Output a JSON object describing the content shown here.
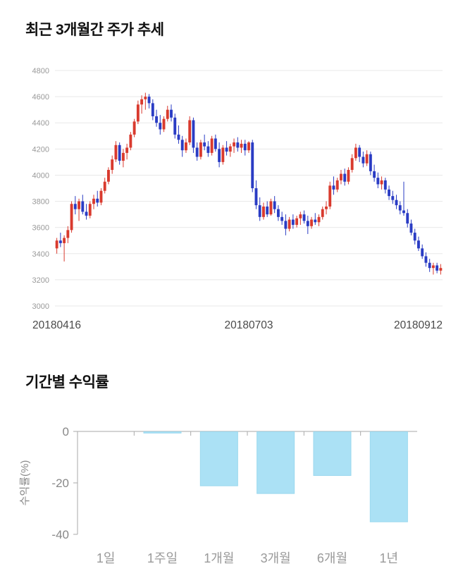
{
  "sections": {
    "price_trend": {
      "title": "최근 3개월간 주가 추세"
    },
    "returns": {
      "title": "기간별 수익률"
    }
  },
  "chart_data": [
    {
      "type": "candlestick",
      "title": "최근 3개월간 주가 추세",
      "ylim": [
        3000,
        4800
      ],
      "ytick_step": 200,
      "xtick_labels": [
        "20180416",
        "20180703",
        "20180912"
      ],
      "up_color": "#d93a2e",
      "down_color": "#2a3cc4",
      "grid_color": "#e8e8e8",
      "candles": [
        [
          3440,
          3520,
          3400,
          3500
        ],
        [
          3500,
          3560,
          3450,
          3480
        ],
        [
          3480,
          3540,
          3340,
          3520
        ],
        [
          3520,
          3610,
          3480,
          3580
        ],
        [
          3580,
          3800,
          3560,
          3780
        ],
        [
          3780,
          3840,
          3700,
          3740
        ],
        [
          3740,
          3820,
          3650,
          3800
        ],
        [
          3800,
          3850,
          3700,
          3720
        ],
        [
          3720,
          3780,
          3660,
          3690
        ],
        [
          3690,
          3800,
          3670,
          3780
        ],
        [
          3780,
          3850,
          3740,
          3820
        ],
        [
          3820,
          3880,
          3760,
          3790
        ],
        [
          3790,
          3900,
          3770,
          3880
        ],
        [
          3880,
          3980,
          3860,
          3950
        ],
        [
          3950,
          4060,
          3930,
          4040
        ],
        [
          4040,
          4150,
          4010,
          4120
        ],
        [
          4120,
          4260,
          4100,
          4230
        ],
        [
          4230,
          4250,
          4080,
          4110
        ],
        [
          4110,
          4200,
          4060,
          4170
        ],
        [
          4170,
          4240,
          4120,
          4210
        ],
        [
          4210,
          4330,
          4190,
          4310
        ],
        [
          4310,
          4430,
          4290,
          4410
        ],
        [
          4410,
          4570,
          4390,
          4540
        ],
        [
          4540,
          4610,
          4470,
          4580
        ],
        [
          4580,
          4630,
          4500,
          4600
        ],
        [
          4600,
          4620,
          4510,
          4550
        ],
        [
          4550,
          4580,
          4420,
          4450
        ],
        [
          4450,
          4500,
          4370,
          4400
        ],
        [
          4400,
          4460,
          4310,
          4350
        ],
        [
          4350,
          4450,
          4330,
          4430
        ],
        [
          4430,
          4530,
          4410,
          4500
        ],
        [
          4500,
          4540,
          4410,
          4440
        ],
        [
          4440,
          4470,
          4280,
          4310
        ],
        [
          4310,
          4380,
          4240,
          4270
        ],
        [
          4270,
          4300,
          4140,
          4190
        ],
        [
          4190,
          4280,
          4170,
          4250
        ],
        [
          4250,
          4450,
          4230,
          4420
        ],
        [
          4420,
          4440,
          4170,
          4210
        ],
        [
          4210,
          4250,
          4110,
          4140
        ],
        [
          4140,
          4270,
          4120,
          4250
        ],
        [
          4250,
          4310,
          4190,
          4220
        ],
        [
          4220,
          4260,
          4140,
          4170
        ],
        [
          4170,
          4300,
          4150,
          4280
        ],
        [
          4280,
          4310,
          4180,
          4200
        ],
        [
          4200,
          4250,
          4060,
          4100
        ],
        [
          4100,
          4230,
          4080,
          4210
        ],
        [
          4210,
          4260,
          4150,
          4180
        ],
        [
          4180,
          4240,
          4140,
          4220
        ],
        [
          4220,
          4280,
          4170,
          4250
        ],
        [
          4250,
          4290,
          4180,
          4210
        ],
        [
          4210,
          4270,
          4170,
          4240
        ],
        [
          4240,
          4270,
          4150,
          4190
        ],
        [
          4190,
          4260,
          4170,
          4250
        ],
        [
          4250,
          4270,
          3870,
          3900
        ],
        [
          3900,
          3960,
          3740,
          3770
        ],
        [
          3770,
          3830,
          3650,
          3680
        ],
        [
          3680,
          3790,
          3660,
          3760
        ],
        [
          3760,
          3800,
          3680,
          3700
        ],
        [
          3700,
          3820,
          3690,
          3800
        ],
        [
          3800,
          3840,
          3710,
          3740
        ],
        [
          3740,
          3770,
          3650,
          3680
        ],
        [
          3680,
          3720,
          3620,
          3650
        ],
        [
          3650,
          3700,
          3540,
          3590
        ],
        [
          3590,
          3680,
          3570,
          3660
        ],
        [
          3660,
          3700,
          3590,
          3620
        ],
        [
          3620,
          3690,
          3600,
          3670
        ],
        [
          3670,
          3720,
          3620,
          3700
        ],
        [
          3700,
          3730,
          3630,
          3650
        ],
        [
          3650,
          3690,
          3550,
          3610
        ],
        [
          3610,
          3680,
          3590,
          3660
        ],
        [
          3660,
          3710,
          3620,
          3640
        ],
        [
          3640,
          3700,
          3610,
          3680
        ],
        [
          3680,
          3760,
          3660,
          3740
        ],
        [
          3740,
          3800,
          3700,
          3760
        ],
        [
          3760,
          3950,
          3740,
          3920
        ],
        [
          3920,
          3990,
          3850,
          3890
        ],
        [
          3890,
          3980,
          3870,
          3960
        ],
        [
          3960,
          4040,
          3930,
          4010
        ],
        [
          4010,
          4050,
          3920,
          3950
        ],
        [
          3950,
          4060,
          3930,
          4040
        ],
        [
          4040,
          4160,
          4020,
          4130
        ],
        [
          4130,
          4240,
          4110,
          4210
        ],
        [
          4210,
          4230,
          4100,
          4140
        ],
        [
          4140,
          4180,
          4060,
          4090
        ],
        [
          4090,
          4190,
          4070,
          4160
        ],
        [
          4160,
          4180,
          4000,
          4030
        ],
        [
          4030,
          4080,
          3950,
          3980
        ],
        [
          3980,
          4020,
          3900,
          3930
        ],
        [
          3930,
          3990,
          3890,
          3960
        ],
        [
          3960,
          3980,
          3860,
          3890
        ],
        [
          3890,
          3920,
          3810,
          3840
        ],
        [
          3840,
          3880,
          3780,
          3810
        ],
        [
          3810,
          3850,
          3740,
          3770
        ],
        [
          3770,
          3800,
          3700,
          3730
        ],
        [
          3730,
          3950,
          3690,
          3710
        ],
        [
          3710,
          3740,
          3600,
          3630
        ],
        [
          3630,
          3660,
          3540,
          3560
        ],
        [
          3560,
          3590,
          3470,
          3500
        ],
        [
          3500,
          3530,
          3420,
          3440
        ],
        [
          3440,
          3470,
          3360,
          3380
        ],
        [
          3380,
          3410,
          3300,
          3330
        ],
        [
          3330,
          3360,
          3260,
          3290
        ],
        [
          3290,
          3330,
          3240,
          3310
        ],
        [
          3310,
          3330,
          3250,
          3270
        ],
        [
          3270,
          3320,
          3240,
          3290
        ]
      ]
    },
    {
      "type": "bar",
      "title": "기간별 수익률",
      "categories": [
        "1일",
        "1주일",
        "1개월",
        "3개월",
        "6개월",
        "1년"
      ],
      "values": [
        0,
        -0.5,
        -21,
        -24,
        -17,
        -35
      ],
      "ylabel": "수익률(%)",
      "yticks": [
        0,
        -20,
        -40
      ],
      "ylim": [
        -40,
        0
      ],
      "bar_color": "#abe1f5",
      "bar_border": "#9bd8ee",
      "axis_color": "#aaaaaa"
    }
  ]
}
